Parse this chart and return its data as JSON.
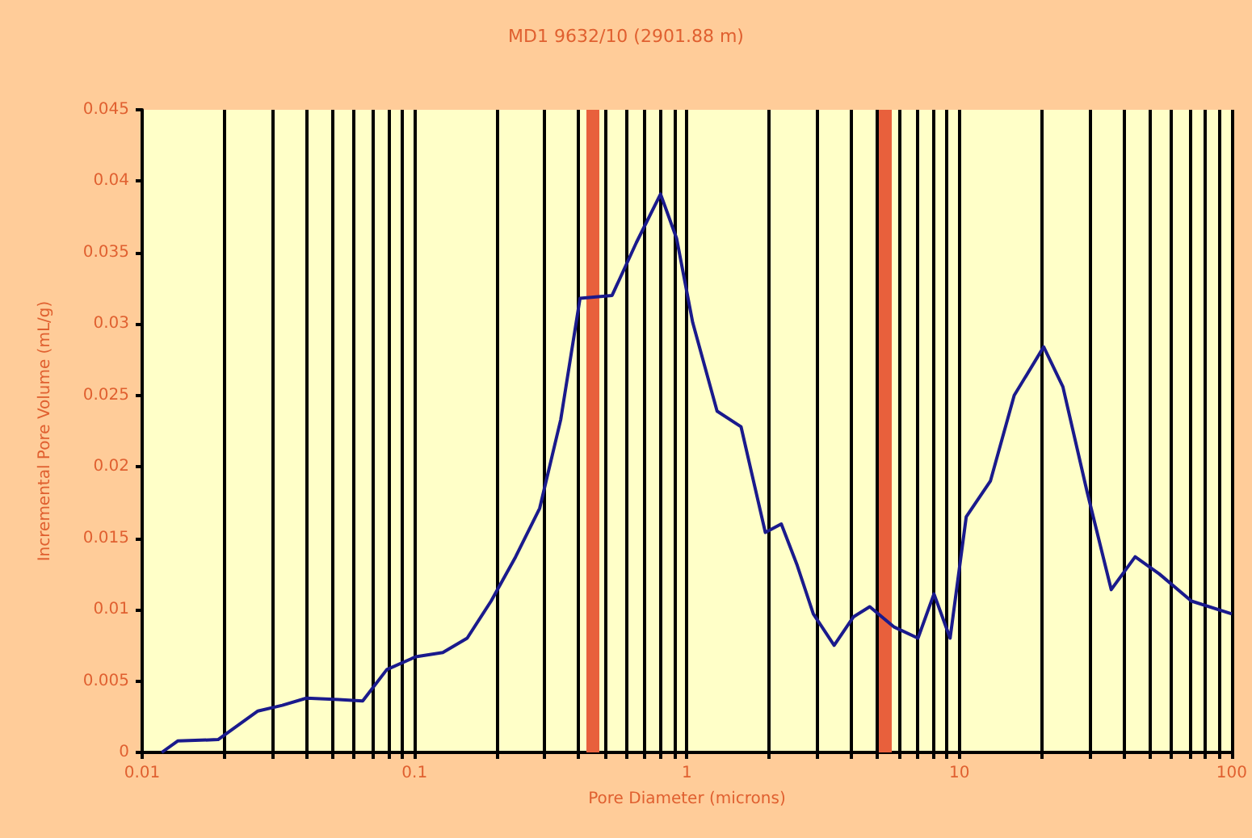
{
  "chart_data": {
    "type": "line",
    "title": "MD1 9632/10 (2901.88 m)",
    "xlabel": "Pore Diameter (microns)",
    "ylabel": "Incremental Pore Volume (mL/g)",
    "log": "x",
    "grid": "x",
    "marker": "none",
    "line_style": "solid",
    "xlim": [
      0.01,
      100
    ],
    "xticks": [
      0.01,
      {
        "value": 0.02,
        "label": null
      },
      {
        "value": 0.03,
        "label": null
      },
      {
        "value": 0.04,
        "label": null
      },
      {
        "value": 0.05,
        "label": null
      },
      {
        "value": 0.06,
        "label": null
      },
      {
        "value": 0.07,
        "label": null
      },
      {
        "value": 0.08,
        "label": null
      },
      {
        "value": 0.09,
        "label": null
      },
      0.1,
      {
        "value": 0.2,
        "label": null
      },
      {
        "value": 0.3,
        "label": null
      },
      {
        "value": 0.4,
        "label": null
      },
      {
        "value": 0.5,
        "label": null
      },
      {
        "value": 0.6,
        "label": null
      },
      {
        "value": 0.7,
        "label": null
      },
      {
        "value": 0.8,
        "label": null
      },
      {
        "value": 0.9,
        "label": null
      },
      1,
      {
        "value": 2,
        "label": null
      },
      {
        "value": 3,
        "label": null
      },
      {
        "value": 4,
        "label": null
      },
      {
        "value": 5,
        "label": null
      },
      {
        "value": 6,
        "label": null
      },
      {
        "value": 7,
        "label": null
      },
      {
        "value": 8,
        "label": null
      },
      {
        "value": 9,
        "label": null
      },
      10,
      {
        "value": 20,
        "label": null
      },
      {
        "value": 30,
        "label": null
      },
      {
        "value": 40,
        "label": null
      },
      {
        "value": 50,
        "label": null
      },
      {
        "value": 60,
        "label": null
      },
      {
        "value": 70,
        "label": null
      },
      {
        "value": 80,
        "label": null
      },
      {
        "value": 90,
        "label": null
      },
      100
    ],
    "ylim": [
      0,
      0.045
    ],
    "yticks": [
      0,
      0.005,
      0.01,
      0.015,
      0.02,
      0.025,
      0.03,
      0.035,
      0.04,
      0.045
    ],
    "x": [
      0.0118,
      0.0135,
      0.019,
      0.0266,
      0.0327,
      0.0401,
      0.0526,
      0.0645,
      0.0791,
      0.101,
      0.127,
      0.156,
      0.191,
      0.235,
      0.288,
      0.344,
      0.405,
      0.531,
      0.652,
      0.8,
      0.916,
      1.05,
      1.29,
      1.58,
      1.94,
      2.22,
      2.54,
      2.91,
      3.47,
      4.09,
      4.69,
      5.74,
      7.05,
      8.07,
      9.25,
      10.6,
      13.0,
      15.9,
      20.4,
      24.0,
      29.4,
      36.1,
      44.2,
      54.2,
      71.1,
      100
    ],
    "series": [
      {
        "color": "#1a1a8c",
        "values": [
          0,
          0.0008,
          0.0009,
          0.0029,
          0.0033,
          0.0038,
          0.0037,
          0.0036,
          0.0058,
          0.0067,
          0.007,
          0.008,
          0.0106,
          0.0137,
          0.0171,
          0.0233,
          0.0318,
          0.032,
          0.0357,
          0.0391,
          0.036,
          0.0301,
          0.0239,
          0.0228,
          0.0154,
          0.016,
          0.0131,
          0.0097,
          0.0075,
          0.0095,
          0.0102,
          0.0088,
          0.008,
          0.0111,
          0.008,
          0.0165,
          0.019,
          0.025,
          0.0284,
          0.0256,
          0.0183,
          0.0114,
          0.0137,
          0.0125,
          0.0106,
          0.0097
        ]
      }
    ],
    "ref_lines": [
      {
        "axis": "x",
        "value": 0.45,
        "color": "#e8603c"
      },
      {
        "axis": "x",
        "value": 5.3,
        "color": "#e8603c"
      }
    ]
  }
}
